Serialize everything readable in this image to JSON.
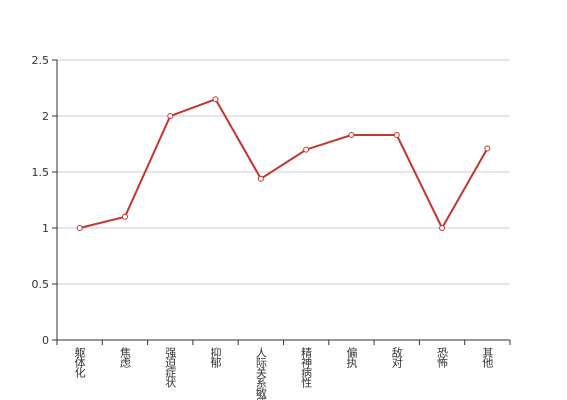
{
  "chart_data": {
    "type": "line",
    "categories": [
      "躯体化",
      "焦虑",
      "强迫症状",
      "抑郁",
      "人际关系敏感",
      "精神病性",
      "偏执",
      "敌对",
      "恐怖",
      "其他"
    ],
    "series": [
      {
        "color": "#c23531",
        "values": [
          1.0,
          1.1,
          2.0,
          2.15,
          1.44,
          1.7,
          1.83,
          1.83,
          1.0,
          1.71
        ]
      }
    ],
    "ylim": [
      0,
      2.5
    ],
    "yticks": [
      0,
      0.5,
      1,
      1.5,
      2,
      2.5
    ],
    "grid": true
  }
}
